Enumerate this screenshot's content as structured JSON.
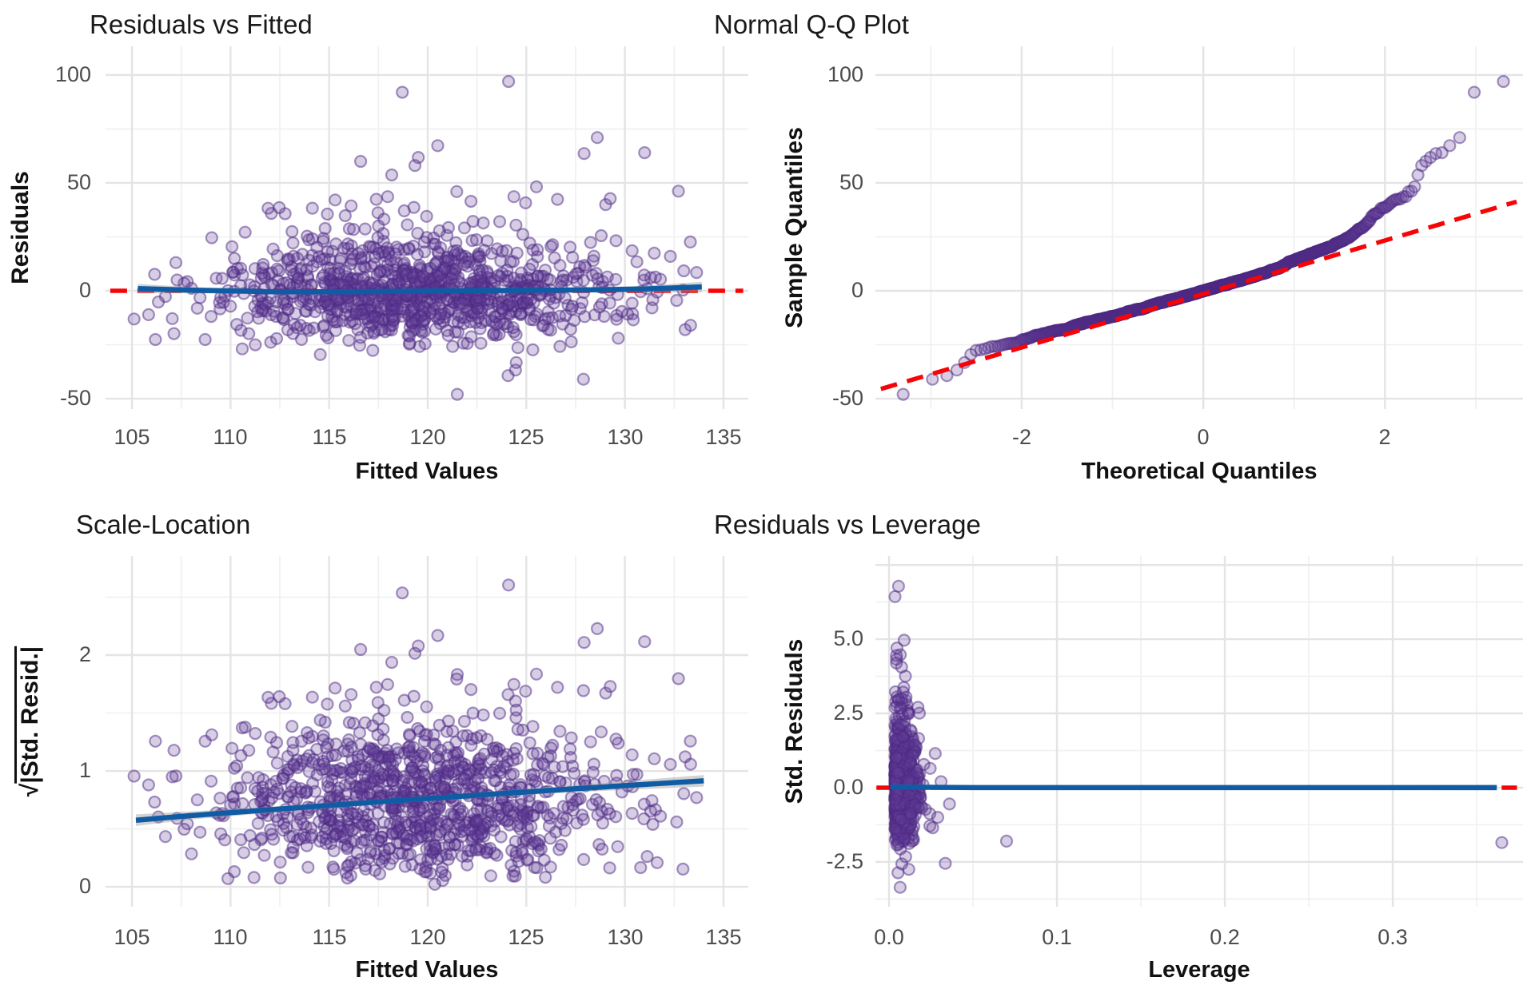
{
  "page": {
    "background": "#ffffff"
  },
  "styles": {
    "point_fill": "#66419C",
    "point_fill_opacity": 0.26,
    "point_stroke": "#4E2A84",
    "point_stroke_opacity": 0.5,
    "blue": "#105CA4",
    "red": "#F60407",
    "band": "#9E9E9E",
    "band_opacity": 0.45,
    "grid_major": "#E4E4E4",
    "grid_minor": "#F1F1F1",
    "title_color": "#1A1A1A",
    "tick_color": "#4D4D4D"
  },
  "generator": {
    "seed": 20240613,
    "n": 1050,
    "residual_sd_divisor": 14.3,
    "fitted": {
      "mean": 119.7,
      "sd": 5.15,
      "min": 104.9,
      "max": 134.3
    },
    "residual_mixture": {
      "p_main": 0.872,
      "main_mean": -2.8,
      "main_sd": 10.2,
      "p_mid": 0.106,
      "mid_base": 13,
      "mid_halfnormal_sd": 10.5,
      "tail_shift": 32,
      "tail_mean": 14,
      "tail_max": 92
    },
    "forced_points": [
      {
        "fitted": 124.1,
        "residual": 97
      },
      {
        "fitted": 128.6,
        "residual": 71
      },
      {
        "fitted": 131.0,
        "residual": 64
      },
      {
        "fitted": 116.6,
        "residual": 60
      },
      {
        "fitted": 121.5,
        "residual": -48
      },
      {
        "fitted": 127.9,
        "residual": -41
      }
    ],
    "leverage": {
      "base": 0.0035,
      "halfnormal_sd": 0.0052,
      "extra_p": 0.02,
      "extra_scale": 0.012,
      "min": 0.0008,
      "max": 0.042
    },
    "leverage_outliers": [
      [
        0.07,
        -1.8
      ],
      [
        0.365,
        -1.85
      ],
      [
        0.0335,
        -2.55
      ],
      [
        0.036,
        -0.55
      ],
      [
        0.0275,
        1.15
      ],
      [
        0.029,
        -1.0
      ],
      [
        0.0245,
        0.65
      ],
      [
        0.026,
        -1.35
      ],
      [
        0.031,
        0.2
      ]
    ]
  },
  "chart_data": [
    {
      "id": "residuals-vs-fitted",
      "type": "scatter",
      "title": "Residuals vs Fitted",
      "xlabel": "Fitted Values",
      "ylabel": "Residuals",
      "xlim": [
        103.66,
        136.26
      ],
      "ylim": [
        -54.8,
        113.3
      ],
      "x_ticks": {
        "values": [
          105,
          110,
          115,
          120,
          125,
          130,
          135
        ],
        "labels": [
          "105",
          "110",
          "115",
          "120",
          "125",
          "130",
          "135"
        ]
      },
      "y_ticks": {
        "values": [
          100,
          50,
          0,
          -50
        ],
        "labels": [
          "100",
          "50",
          "0",
          "-50"
        ]
      },
      "x_grid_minor": [
        107.5,
        112.5,
        117.5,
        122.5,
        127.5,
        132.5
      ],
      "y_grid_minor": [
        -25,
        25,
        75
      ],
      "y_grid_extra": [],
      "points_source": "rvf",
      "layers": [
        {
          "mark": "dashed-line",
          "color": "red",
          "from": [
            103.9,
            0
          ],
          "to": [
            136.0,
            0
          ]
        },
        {
          "mark": "points"
        },
        {
          "mark": "smoother",
          "band": true,
          "points": [
            [
              105.3,
              1.0,
              2.2
            ],
            [
              108,
              0.3,
              1.4
            ],
            [
              112,
              -0.4,
              1.0
            ],
            [
              116,
              -0.5,
              0.9
            ],
            [
              120,
              -0.1,
              0.9
            ],
            [
              124,
              0.2,
              0.9
            ],
            [
              128,
              0.4,
              1.1
            ],
            [
              131,
              0.8,
              1.5
            ],
            [
              133.9,
              1.8,
              2.4
            ]
          ]
        }
      ]
    },
    {
      "id": "normal-qq",
      "type": "scatter",
      "title": "Normal Q-Q Plot",
      "xlabel": "Theoretical Quantiles",
      "ylabel": "Sample Quantiles",
      "xlim": [
        -3.61,
        3.52
      ],
      "ylim": [
        -54.8,
        113.3
      ],
      "x_ticks": {
        "values": [
          -2,
          0,
          2
        ],
        "labels": [
          "-2",
          "0",
          "2"
        ]
      },
      "y_ticks": {
        "values": [
          100,
          50,
          0,
          -50
        ],
        "labels": [
          "100",
          "50",
          "0",
          "-50"
        ]
      },
      "x_grid_minor": [
        -3,
        -1,
        1,
        3
      ],
      "y_grid_minor": [
        -25,
        25,
        75
      ],
      "y_grid_extra": [],
      "points_source": "qq",
      "layers": [
        {
          "mark": "points"
        },
        {
          "mark": "dashed-line",
          "color": "red",
          "from": [
            -3.55,
            -45.5
          ],
          "to": [
            3.45,
            41.3
          ]
        }
      ]
    },
    {
      "id": "scale-location",
      "type": "scatter",
      "title": "Scale-Location",
      "xlabel": "Fitted Values",
      "ylabel": "√|Std. Resid.|",
      "ylabel_parts": {
        "radical": "√",
        "arg": "|Std. Resid.|"
      },
      "xlim": [
        103.66,
        136.26
      ],
      "ylim": [
        -0.172,
        2.855
      ],
      "x_ticks": {
        "values": [
          105,
          110,
          115,
          120,
          125,
          130,
          135
        ],
        "labels": [
          "105",
          "110",
          "115",
          "120",
          "125",
          "130",
          "135"
        ]
      },
      "y_ticks": {
        "values": [
          2,
          1,
          0
        ],
        "labels": [
          "2",
          "1",
          "0"
        ]
      },
      "x_grid_minor": [
        107.5,
        112.5,
        117.5,
        122.5,
        127.5,
        132.5
      ],
      "y_grid_minor": [
        0.5,
        1.5,
        2.5
      ],
      "y_grid_extra": [],
      "points_source": "sl",
      "layers": [
        {
          "mark": "points"
        },
        {
          "mark": "smoother",
          "band": true,
          "points": [
            [
              105.2,
              0.575,
              0.05
            ],
            [
              108,
              0.615,
              0.035
            ],
            [
              112,
              0.665,
              0.027
            ],
            [
              116,
              0.715,
              0.024
            ],
            [
              120,
              0.762,
              0.023
            ],
            [
              124,
              0.808,
              0.025
            ],
            [
              128,
              0.852,
              0.031
            ],
            [
              131,
              0.884,
              0.04
            ],
            [
              134,
              0.915,
              0.05
            ]
          ]
        }
      ]
    },
    {
      "id": "residuals-vs-leverage",
      "type": "scatter",
      "title": "Residuals vs Leverage",
      "xlabel": "Leverage",
      "ylabel": "Std. Residuals",
      "xlim": [
        -0.0081,
        0.3776
      ],
      "ylim": [
        -4.01,
        7.8
      ],
      "x_ticks": {
        "values": [
          0.0,
          0.1,
          0.2,
          0.3
        ],
        "labels": [
          "0.0",
          "0.1",
          "0.2",
          "0.3"
        ]
      },
      "y_ticks": {
        "values": [
          5.0,
          2.5,
          0.0,
          -2.5
        ],
        "labels": [
          "5.0",
          "2.5",
          "0.0",
          "-2.5"
        ]
      },
      "x_grid_minor": [
        0.05,
        0.15,
        0.25,
        0.35
      ],
      "y_grid_minor": [
        -3.75,
        -1.25,
        1.25,
        3.75,
        6.25
      ],
      "y_grid_extra": [
        7.5
      ],
      "points_source": "lev",
      "layers": [
        {
          "mark": "dashed-line",
          "color": "red",
          "from": [
            -0.0075,
            0
          ],
          "to": [
            0.374,
            0
          ]
        },
        {
          "mark": "points"
        },
        {
          "mark": "smoother",
          "band": true,
          "points": [
            [
              0.001,
              0.02,
              0.09
            ],
            [
              0.05,
              0.0,
              0.07
            ],
            [
              0.15,
              0.0,
              0.07
            ],
            [
              0.25,
              0.0,
              0.07
            ],
            [
              0.362,
              0.0,
              0.09
            ]
          ]
        }
      ]
    }
  ]
}
